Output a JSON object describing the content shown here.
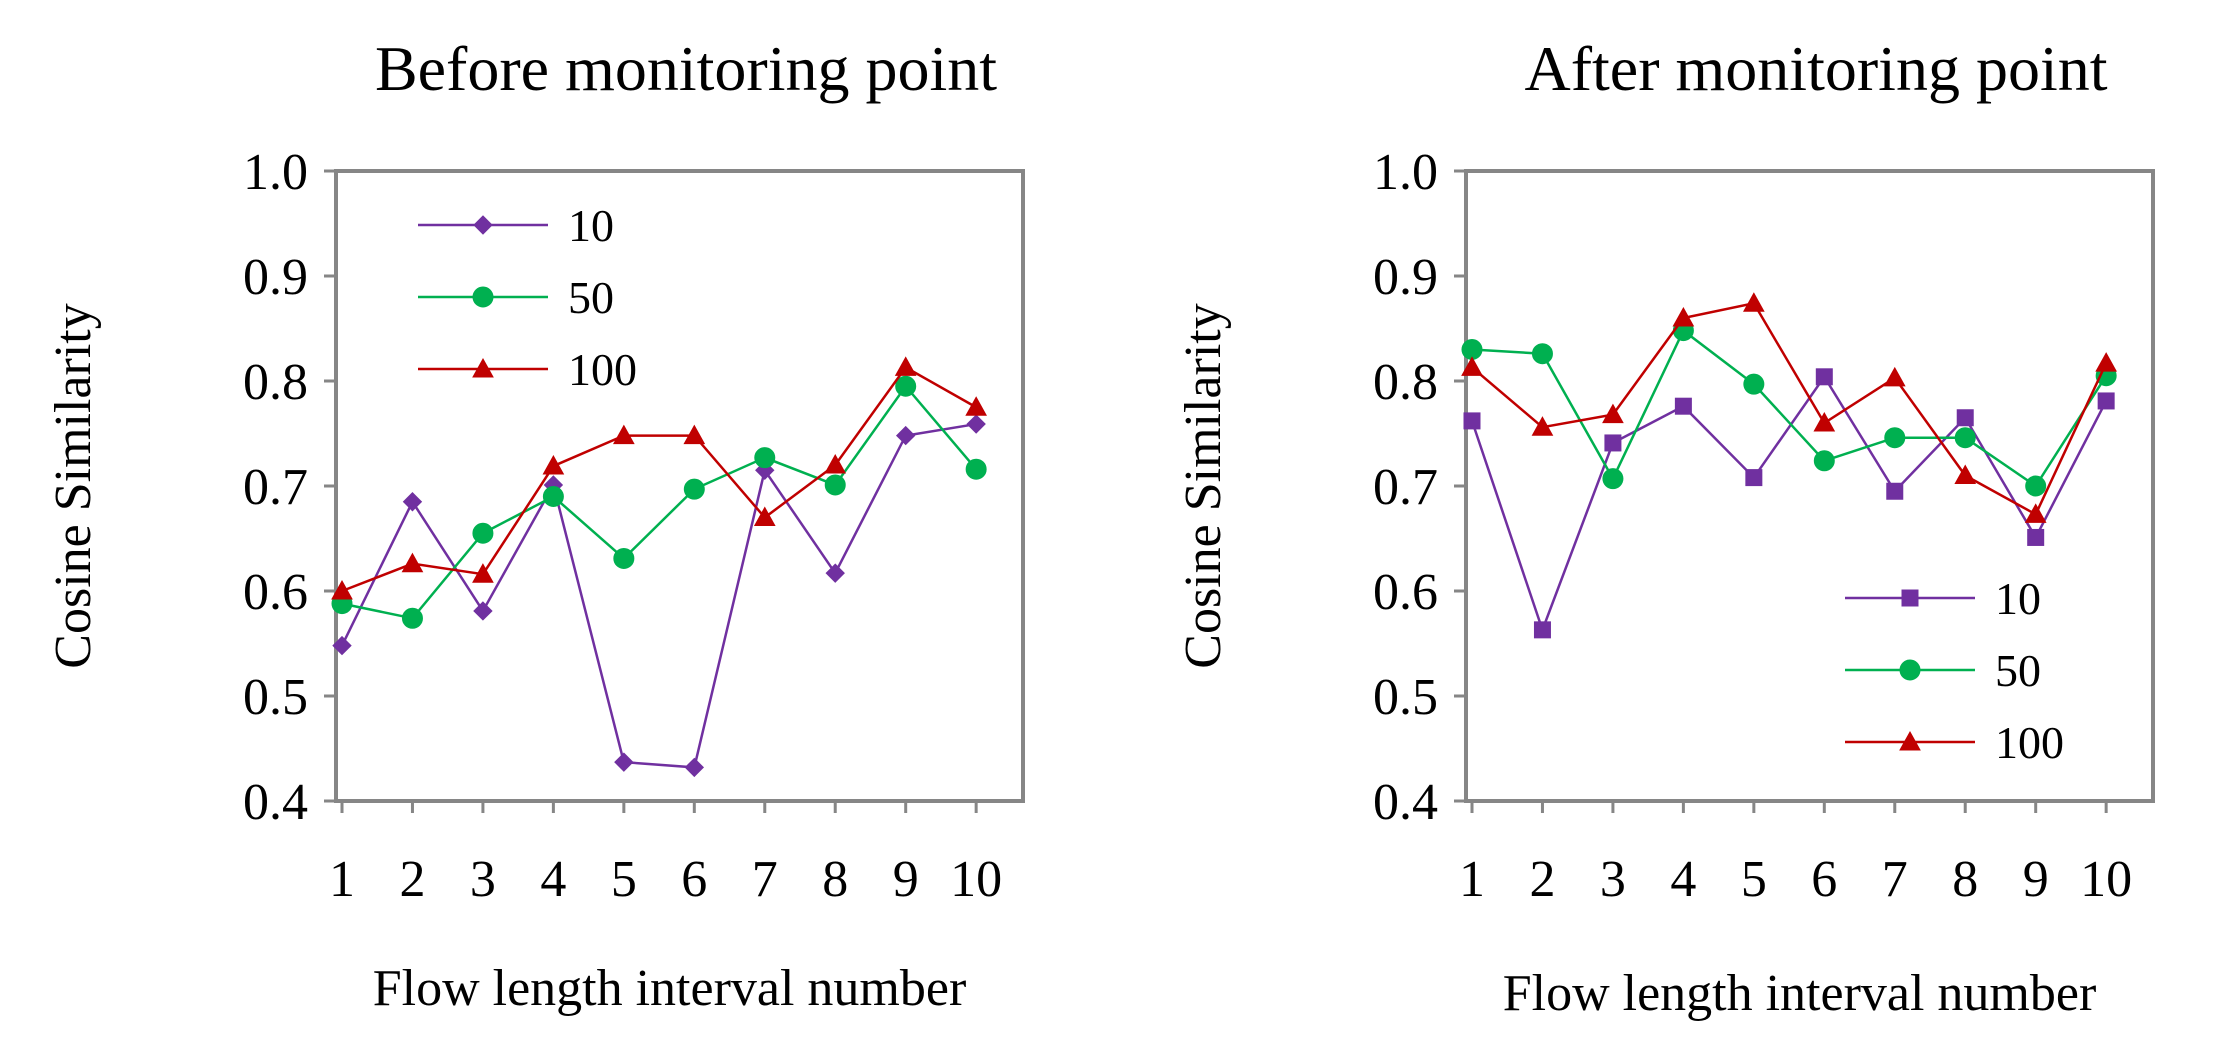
{
  "figure": {
    "panels": [
      "Before monitoring point",
      "After monitoring point"
    ]
  },
  "chart_data": [
    {
      "type": "line",
      "title": "Before monitoring point",
      "xlabel": "Flow length interval number",
      "ylabel": "Cosine Similarity",
      "x": [
        1,
        2,
        3,
        4,
        5,
        6,
        7,
        8,
        9,
        10
      ],
      "x_ticks": [
        "1",
        "2",
        "3",
        "4",
        "5",
        "6",
        "7",
        "8",
        "9",
        "10"
      ],
      "ylim": [
        0.4,
        1.0
      ],
      "y_ticks": [
        "0.4",
        "0.5",
        "0.6",
        "0.7",
        "0.8",
        "0.9",
        "1.0"
      ],
      "grid": false,
      "legend_position": "top-left",
      "series": [
        {
          "name": "10",
          "color": "#7030A0",
          "marker": "diamond",
          "values": [
            0.548,
            0.685,
            0.581,
            0.701,
            0.437,
            0.432,
            0.715,
            0.617,
            0.748,
            0.759
          ]
        },
        {
          "name": "50",
          "color": "#00B050",
          "marker": "circle",
          "values": [
            0.588,
            0.574,
            0.655,
            0.69,
            0.631,
            0.697,
            0.727,
            0.701,
            0.795,
            0.716
          ]
        },
        {
          "name": "100",
          "color": "#C00000",
          "marker": "triangle",
          "values": [
            0.6,
            0.626,
            0.616,
            0.719,
            0.748,
            0.748,
            0.67,
            0.72,
            0.813,
            0.775
          ]
        }
      ]
    },
    {
      "type": "line",
      "title": "After monitoring point",
      "xlabel": "Flow length interval number",
      "ylabel": "Cosine Similarity",
      "x": [
        1,
        2,
        3,
        4,
        5,
        6,
        7,
        8,
        9,
        10
      ],
      "x_ticks": [
        "1",
        "2",
        "3",
        "4",
        "5",
        "6",
        "7",
        "8",
        "9",
        "10"
      ],
      "ylim": [
        0.4,
        1.0
      ],
      "y_ticks": [
        "0.4",
        "0.5",
        "0.6",
        "0.7",
        "0.8",
        "0.9",
        "1.0"
      ],
      "grid": false,
      "legend_position": "bottom-right",
      "series": [
        {
          "name": "10",
          "color": "#7030A0",
          "marker": "square",
          "values": [
            0.762,
            0.563,
            0.741,
            0.776,
            0.708,
            0.804,
            0.695,
            0.765,
            0.651,
            0.781
          ]
        },
        {
          "name": "50",
          "color": "#00B050",
          "marker": "circle",
          "values": [
            0.83,
            0.826,
            0.707,
            0.848,
            0.797,
            0.724,
            0.746,
            0.746,
            0.7,
            0.805
          ]
        },
        {
          "name": "100",
          "color": "#C00000",
          "marker": "triangle",
          "values": [
            0.813,
            0.756,
            0.768,
            0.86,
            0.874,
            0.76,
            0.803,
            0.71,
            0.673,
            0.817
          ]
        }
      ]
    }
  ]
}
